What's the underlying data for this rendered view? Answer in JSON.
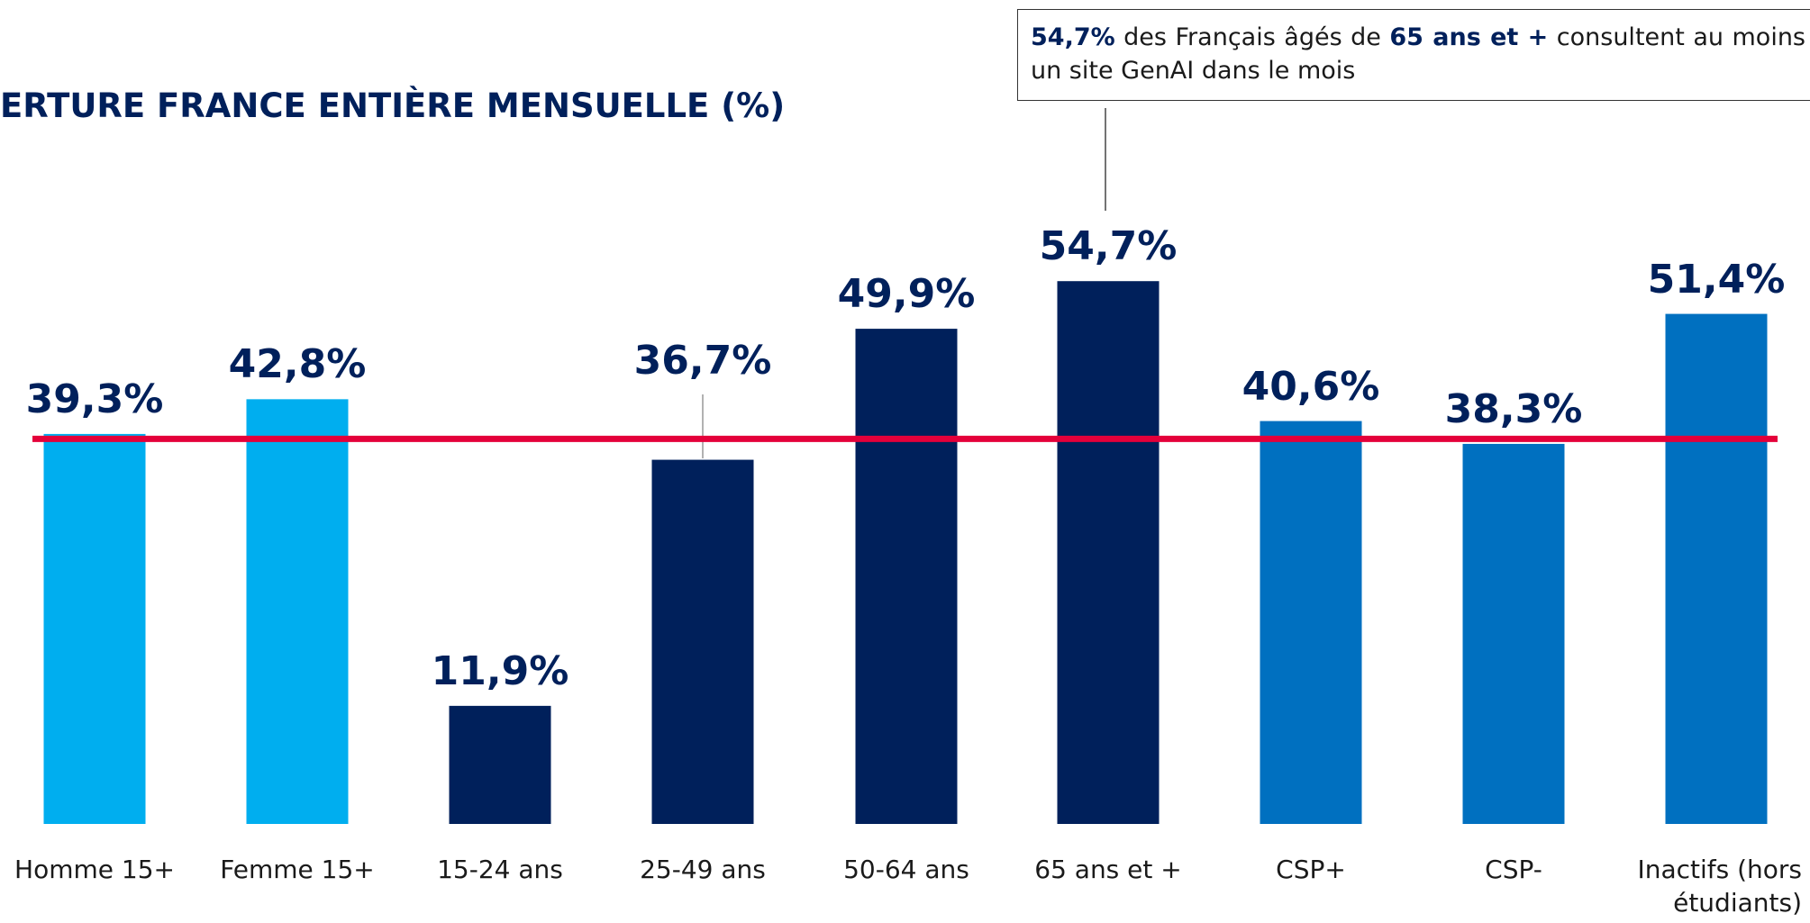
{
  "chart_data": {
    "type": "bar",
    "title": "ERTURE FRANCE ENTIÈRE MENSUELLE (%)",
    "categories": [
      "Homme 15+",
      "Femme 15+",
      "15-24 ans",
      "25-49 ans",
      "50-64 ans",
      "65 ans et +",
      "CSP+",
      "CSP-",
      "Inactifs (hors étudiants)"
    ],
    "values": [
      39.3,
      42.8,
      11.9,
      36.7,
      49.9,
      54.7,
      40.6,
      38.3,
      51.4
    ],
    "value_labels": [
      "39,3%",
      "42,8%",
      "11,9%",
      "36,7%",
      "49,9%",
      "54,7%",
      "40,6%",
      "38,3%",
      "51,4%"
    ],
    "colors": [
      "#00aeef",
      "#00aeef",
      "#00205b",
      "#00205b",
      "#00205b",
      "#00205b",
      "#0070c0",
      "#0070c0",
      "#0070c0"
    ],
    "reference_line": {
      "value": 38.8,
      "color": "#e4003a"
    },
    "annotation": [
      {
        "text": "54,7%",
        "bold": true
      },
      {
        "text": " des Français âgés de ",
        "bold": false
      },
      {
        "text": "65 ans et +",
        "bold": true
      },
      {
        "text": " consultent au moins un site GenAI dans le mois",
        "bold": false
      }
    ]
  }
}
